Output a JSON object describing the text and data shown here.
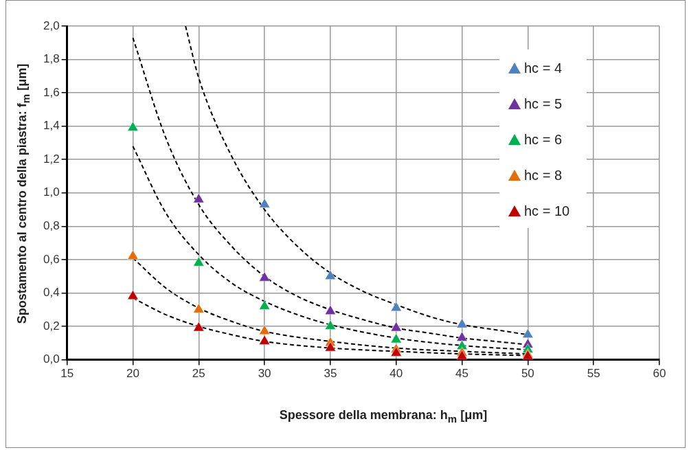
{
  "chart_data": {
    "type": "scatter",
    "xlabel": "Spessore della membrana: h$_{m}$ [μm]",
    "ylabel": "Spostamento al centro della piastra: f$_{m}$ [μm]",
    "xlim": [
      15,
      60
    ],
    "xticks": [
      15,
      20,
      25,
      30,
      35,
      40,
      45,
      50,
      55,
      60
    ],
    "ylim": [
      0,
      2
    ],
    "yticks": [
      {
        "value": 0,
        "label": "0,0"
      },
      {
        "value": 0.2,
        "label": "0,2"
      },
      {
        "value": 0.4,
        "label": "0,4"
      },
      {
        "value": 0.6,
        "label": "0,6"
      },
      {
        "value": 0.8,
        "label": "0,8"
      },
      {
        "value": 1.0,
        "label": "1,0"
      },
      {
        "value": 1.2,
        "label": "1,2"
      },
      {
        "value": 1.4,
        "label": "1,4"
      },
      {
        "value": 1.6,
        "label": "1,6"
      },
      {
        "value": 1.8,
        "label": "1,8"
      },
      {
        "value": 2.0,
        "label": "2,0"
      }
    ],
    "grid": true,
    "legend": "top right",
    "marker": "triangle",
    "series": [
      {
        "name": "hc = 4",
        "color": "#4f81bd",
        "x": [
          30,
          35,
          40,
          45,
          50
        ],
        "values": [
          0.93,
          0.5,
          0.31,
          0.21,
          0.15
        ]
      },
      {
        "name": "hc = 5",
        "color": "#7030a0",
        "x": [
          25,
          30,
          35,
          40,
          45,
          50
        ],
        "values": [
          0.96,
          0.49,
          0.29,
          0.19,
          0.13,
          0.09
        ]
      },
      {
        "name": "hc = 6",
        "color": "#00b050",
        "x": [
          20,
          25,
          30,
          35,
          40,
          45,
          50
        ],
        "values": [
          1.39,
          0.58,
          0.32,
          0.2,
          0.12,
          0.08,
          0.06
        ]
      },
      {
        "name": "hc = 8",
        "color": "#e46c0a",
        "x": [
          20,
          25,
          30,
          35,
          40,
          45,
          50
        ],
        "values": [
          0.62,
          0.3,
          0.17,
          0.1,
          0.06,
          0.04,
          0.03
        ]
      },
      {
        "name": "hc = 10",
        "color": "#c00000",
        "x": [
          20,
          25,
          30,
          35,
          40,
          45,
          50
        ],
        "values": [
          0.38,
          0.19,
          0.11,
          0.07,
          0.04,
          0.02,
          0.02
        ]
      },
      {
        "type": "line",
        "color": "#000000",
        "line_style": "dashed",
        "marker": "none",
        "x": [
          24,
          25,
          27.5,
          30,
          32.5,
          35,
          37.5,
          40,
          42.5,
          45,
          47.5,
          50
        ],
        "values": [
          2.0,
          1.69,
          1.22,
          0.9,
          0.68,
          0.52,
          0.41,
          0.33,
          0.26,
          0.21,
          0.18,
          0.15
        ]
      },
      {
        "type": "line",
        "color": "#000000",
        "line_style": "dashed",
        "marker": "none",
        "x": [
          20,
          22.5,
          25,
          27.5,
          30,
          32.5,
          35,
          37.5,
          40,
          42.5,
          45,
          47.5,
          50
        ],
        "values": [
          1.93,
          1.33,
          0.93,
          0.68,
          0.5,
          0.38,
          0.3,
          0.24,
          0.19,
          0.16,
          0.13,
          0.11,
          0.09
        ]
      },
      {
        "type": "line",
        "color": "#000000",
        "line_style": "dashed",
        "marker": "none",
        "x": [
          20,
          22.5,
          25,
          27.5,
          30,
          32.5,
          35,
          40,
          45,
          50
        ],
        "values": [
          1.28,
          0.88,
          0.63,
          0.46,
          0.35,
          0.27,
          0.21,
          0.13,
          0.085,
          0.06
        ]
      },
      {
        "type": "line",
        "color": "#000000",
        "line_style": "dashed",
        "marker": "none",
        "x": [
          20,
          22.5,
          25,
          27.5,
          30,
          35,
          40,
          45,
          50
        ],
        "values": [
          0.61,
          0.43,
          0.31,
          0.23,
          0.17,
          0.11,
          0.07,
          0.05,
          0.035
        ]
      },
      {
        "type": "line",
        "color": "#000000",
        "line_style": "dashed",
        "marker": "none",
        "x": [
          20,
          22.5,
          25,
          27.5,
          30,
          35,
          40,
          45,
          50
        ],
        "values": [
          0.37,
          0.27,
          0.2,
          0.15,
          0.11,
          0.07,
          0.05,
          0.035,
          0.025
        ]
      }
    ]
  }
}
